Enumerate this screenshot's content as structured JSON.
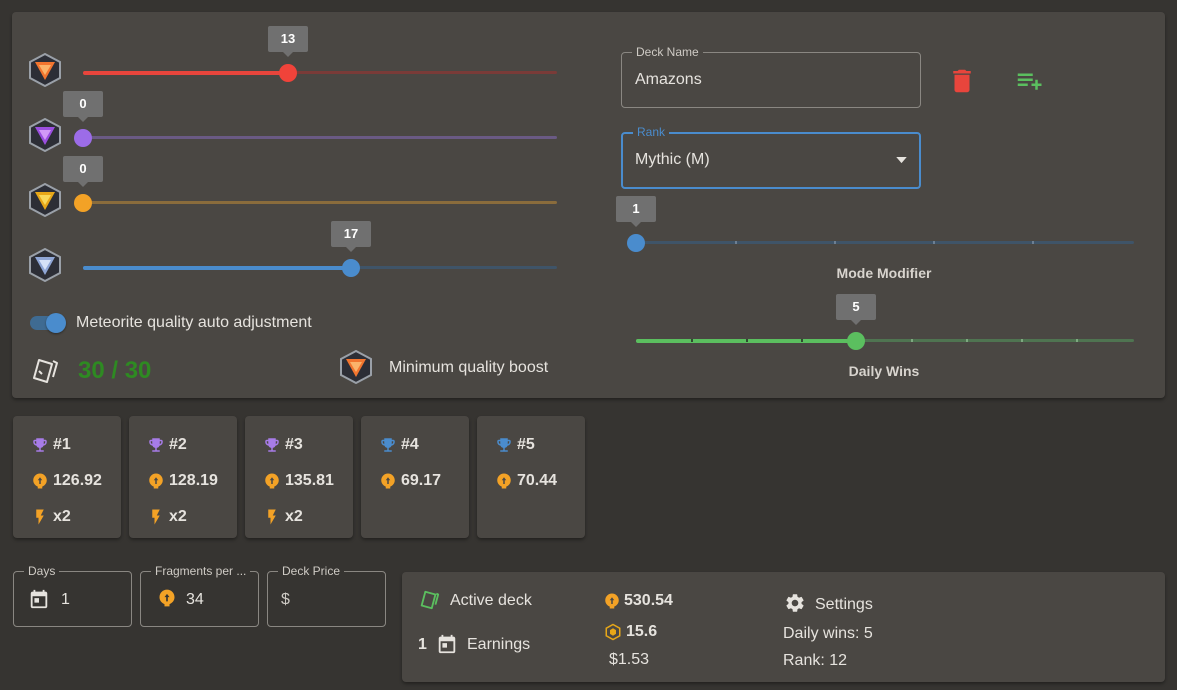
{
  "sliders": {
    "red": {
      "value": "13",
      "fraction": 0.433
    },
    "purple": {
      "value": "0",
      "fraction": 0
    },
    "gold": {
      "value": "0",
      "fraction": 0
    },
    "blue": {
      "value": "17",
      "fraction": 0.567
    }
  },
  "auto_adjust_label": "Meteorite quality auto adjustment",
  "card_count": "30 / 30",
  "min_quality_label": "Minimum quality boost",
  "deck_name": {
    "label": "Deck Name",
    "value": "Amazons"
  },
  "rank": {
    "label": "Rank",
    "value": "Mythic (M)"
  },
  "mode_modifier": {
    "label": "Mode Modifier",
    "value": "1",
    "fraction": 0
  },
  "daily_wins": {
    "label": "Daily Wins",
    "value": "5",
    "fraction": 0.444
  },
  "cards": [
    {
      "rank": "#1",
      "value": "126.92",
      "mult": "x2",
      "trophy": "#a77ce8"
    },
    {
      "rank": "#2",
      "value": "128.19",
      "mult": "x2",
      "trophy": "#a77ce8"
    },
    {
      "rank": "#3",
      "value": "135.81",
      "mult": "x2",
      "trophy": "#a77ce8"
    },
    {
      "rank": "#4",
      "value": "69.17",
      "mult": "",
      "trophy": "#4a8ccd"
    },
    {
      "rank": "#5",
      "value": "70.44",
      "mult": "",
      "trophy": "#4a8ccd"
    }
  ],
  "days": {
    "label": "Days",
    "value": "1"
  },
  "fragments": {
    "label": "Fragments per ...",
    "value": "34"
  },
  "deck_price": {
    "label": "Deck Price",
    "value": "$"
  },
  "summary": {
    "active_deck": "Active deck",
    "earn_days": "1",
    "earnings": "Earnings",
    "fragments": "530.54",
    "tokens": "15.6",
    "usd": "$1.53",
    "settings": "Settings",
    "daily_wins": "Daily wins: 5",
    "rank": "Rank: 12"
  }
}
